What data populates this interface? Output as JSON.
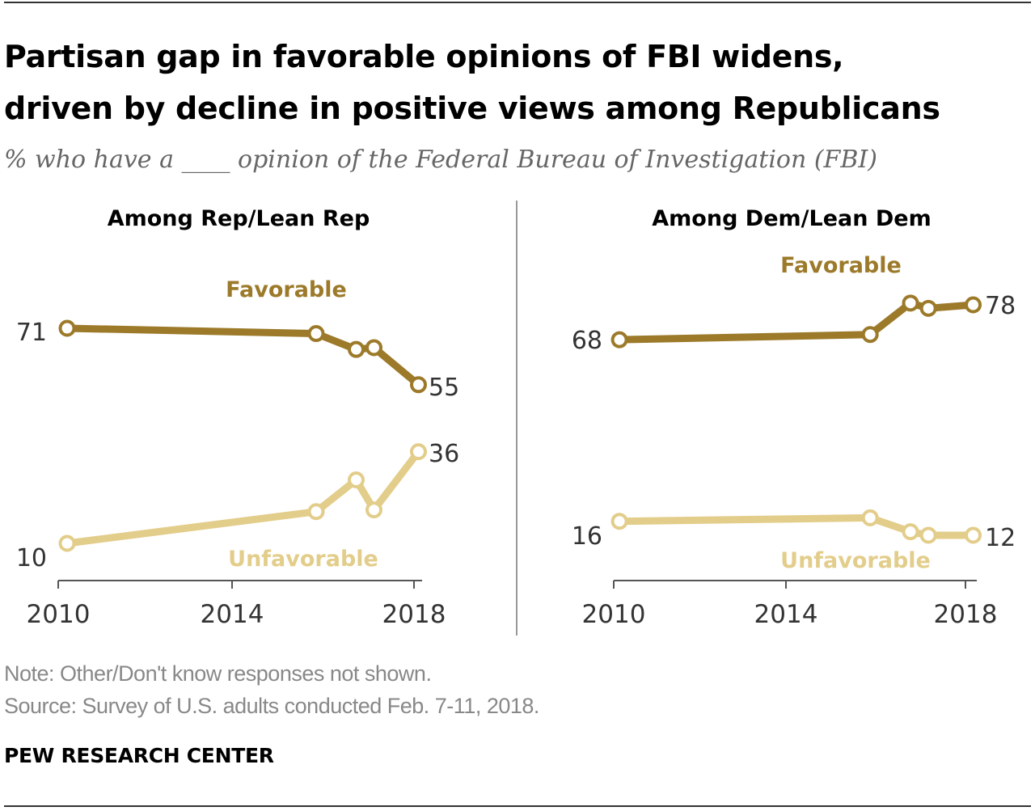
{
  "header": {
    "title_line1": "Partisan gap in favorable opinions of FBI widens,",
    "title_line2": "driven by decline in positive views among Republicans",
    "subtitle": "% who have a ____ opinion of the Federal Bureau of Investigation (FBI)"
  },
  "footer": {
    "note": "Note: Other/Don't know responses not shown.",
    "source": "Source: Survey of U.S. adults conducted Feb. 7-11, 2018.",
    "brand": "PEW RESEARCH CENTER"
  },
  "colors": {
    "favorable": "#9c7a2a",
    "unfavorable": "#e3cd8a",
    "axis": "#555555",
    "text": "#333333"
  },
  "chart_data": [
    {
      "type": "line",
      "title": "Among Rep/Lean Rep",
      "xlim": [
        2010,
        2018
      ],
      "ylim": [
        10,
        71
      ],
      "xticks": [
        "2010",
        "2014",
        "2018"
      ],
      "series": [
        {
          "name": "Favorable",
          "color": "#9c7a2a",
          "x": [
            2010.2,
            2015.8,
            2016.7,
            2017.1,
            2018.1
          ],
          "y": [
            71,
            69.5,
            65,
            65.5,
            55
          ],
          "start_label": "71",
          "end_label": "55"
        },
        {
          "name": "Unfavorable",
          "color": "#e3cd8a",
          "x": [
            2010.2,
            2015.8,
            2016.7,
            2017.1,
            2018.1
          ],
          "y": [
            10,
            19,
            28,
            19.5,
            36
          ],
          "start_label": "10",
          "end_label": "36"
        }
      ]
    },
    {
      "type": "line",
      "title": "Among Dem/Lean Dem",
      "xlim": [
        2010,
        2018
      ],
      "ylim": [
        12,
        78
      ],
      "xticks": [
        "2010",
        "2014",
        "2018"
      ],
      "series": [
        {
          "name": "Favorable",
          "color": "#9c7a2a",
          "x": [
            2010.2,
            2015.8,
            2016.7,
            2017.1,
            2018.1
          ],
          "y": [
            68,
            69.5,
            78.5,
            77,
            78
          ],
          "start_label": "68",
          "end_label": "78"
        },
        {
          "name": "Unfavorable",
          "color": "#e3cd8a",
          "x": [
            2010.2,
            2015.8,
            2016.7,
            2017.1,
            2018.1
          ],
          "y": [
            16,
            17,
            13,
            12,
            12
          ],
          "start_label": "16",
          "end_label": "12"
        }
      ]
    }
  ]
}
